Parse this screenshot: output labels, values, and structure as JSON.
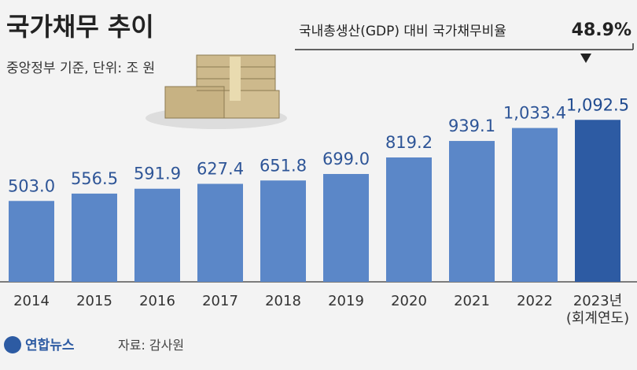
{
  "chart_data": {
    "type": "bar",
    "title": "국가채무 추이",
    "subtitle": "중앙정부 기준, 단위: 조 원",
    "annotation": {
      "text": "국내총생산(GDP) 대비 국가채무비율",
      "ratio": {
        "value": 48.9,
        "label": "48.9%"
      }
    },
    "categories": [
      "2014",
      "2015",
      "2016",
      "2017",
      "2018",
      "2019",
      "2020",
      "2021",
      "2022",
      "2023년\n(회계연도)"
    ],
    "values": [
      503.0,
      556.5,
      591.9,
      627.4,
      651.8,
      699.0,
      819.2,
      939.1,
      1033.4,
      1092.5
    ],
    "value_labels": [
      "503.0",
      "556.5",
      "591.9",
      "627.4",
      "651.8",
      "699.0",
      "819.2",
      "939.1",
      "1,033.4",
      "1,092.5"
    ],
    "colors": [
      "#5b87c8",
      "#5b87c8",
      "#5b87c8",
      "#5b87c8",
      "#5b87c8",
      "#5b87c8",
      "#5b87c8",
      "#5b87c8",
      "#5b87c8",
      "#2d5ba3"
    ],
    "ylim": [
      -85,
      1300
    ],
    "source": "자료: 감사원",
    "logo": "연합뉴스"
  }
}
